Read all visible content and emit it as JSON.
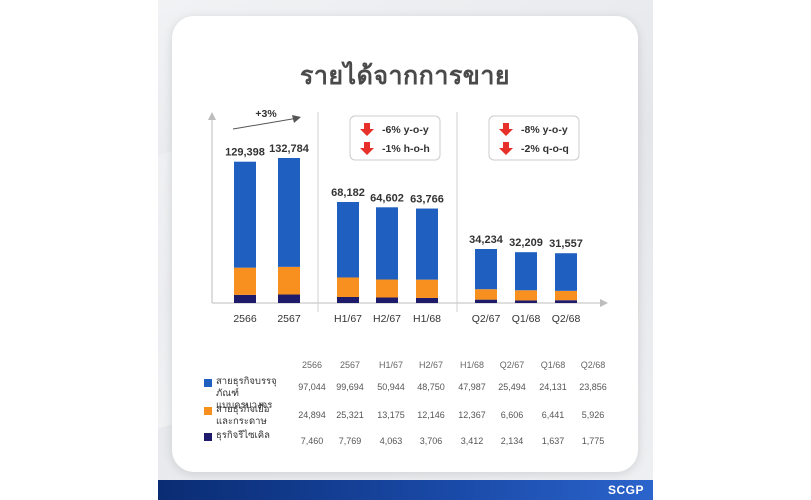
{
  "title": "รายได้จากการขาย",
  "colors": {
    "series1": "#1f5fbf",
    "series2": "#f7901e",
    "series3": "#1e1b6b",
    "arrow": "#e8302a"
  },
  "chart_data": {
    "type": "bar",
    "stacked": true,
    "categories": [
      "2566",
      "2567",
      "H1/67",
      "H2/67",
      "H1/68",
      "Q2/67",
      "Q1/68",
      "Q2/68"
    ],
    "groups": [
      [
        "2566",
        "2567"
      ],
      [
        "H1/67",
        "H2/67",
        "H1/68"
      ],
      [
        "Q2/67",
        "Q1/68",
        "Q2/68"
      ]
    ],
    "totals": [
      "129,398",
      "132,784",
      "68,182",
      "64,602",
      "63,766",
      "34,234",
      "32,209",
      "31,557"
    ],
    "series": [
      {
        "name": "สายธุรกิจบรรจุภัณฑ์แบบครบวงจร",
        "values": [
          97044,
          99694,
          50944,
          48750,
          47987,
          25494,
          24131,
          23856
        ]
      },
      {
        "name": "สายธุรกิจเยื่อและกระดาษ",
        "values": [
          24894,
          25321,
          13175,
          12146,
          12367,
          6606,
          6441,
          5926
        ]
      },
      {
        "name": "ธุรกิจรีไซเคิล",
        "values": [
          7460,
          7769,
          4063,
          3706,
          3412,
          2134,
          1637,
          1775
        ]
      }
    ],
    "annotations": {
      "growth": "+3%",
      "callout_h": [
        "-6% y-o-y",
        "-1% h-o-h"
      ],
      "callout_q": [
        "-8% y-o-y",
        "-2% q-o-q"
      ]
    }
  },
  "table": {
    "headers": [
      "2566",
      "2567",
      "H1/67",
      "H2/67",
      "H1/68",
      "Q2/67",
      "Q1/68",
      "Q2/68"
    ],
    "rows": [
      {
        "label_line1": "สายธุรกิจบรรจุภัณฑ์",
        "label_line2": "แบบครบวงจร",
        "cells": [
          "97,044",
          "99,694",
          "50,944",
          "48,750",
          "47,987",
          "25,494",
          "24,131",
          "23,856"
        ]
      },
      {
        "label_line1": "สายธุรกิจเยื่อ",
        "label_line2": "และกระดาษ",
        "cells": [
          "24,894",
          "25,321",
          "13,175",
          "12,146",
          "12,367",
          "6,606",
          "6,441",
          "5,926"
        ]
      },
      {
        "label_line1": "ธุรกิจรีไซเคิล",
        "label_line2": "",
        "cells": [
          "7,460",
          "7,769",
          "4,063",
          "3,706",
          "3,412",
          "2,134",
          "1,637",
          "1,775"
        ]
      }
    ]
  },
  "footer": {
    "logo": "SCGP"
  }
}
